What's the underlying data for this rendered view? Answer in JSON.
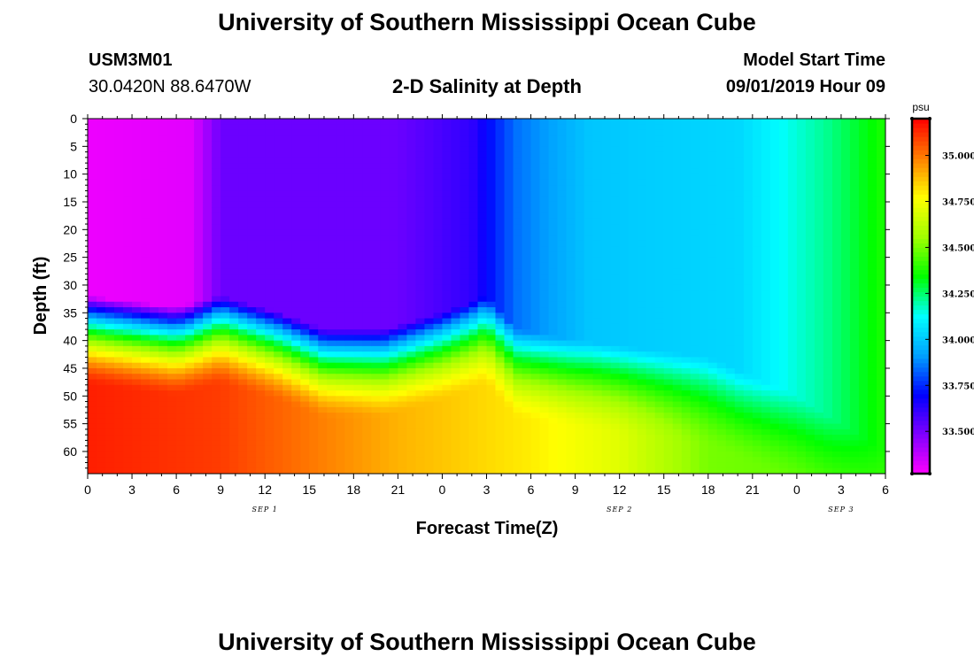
{
  "header": {
    "title": "University of Southern Mississippi Ocean Cube",
    "station_id": "USM3M01",
    "station_coords": "30.0420N 88.6470W",
    "plot_title": "2-D Salinity at Depth",
    "model_start_label": "Model Start Time",
    "model_start_value": "09/01/2019 Hour 09"
  },
  "footer": {
    "title": "University of Southern Mississippi Ocean Cube"
  },
  "chart_data": {
    "type": "heatmap",
    "title": "2-D Salinity at Depth",
    "xlabel": "Forecast Time(Z)",
    "ylabel": "Depth (ft)",
    "x_hours": [
      0,
      3,
      6,
      9,
      12,
      15,
      18,
      21,
      24,
      27,
      30,
      33,
      36,
      39,
      42,
      45,
      48,
      51,
      54
    ],
    "x_tick_labels": [
      "0",
      "3",
      "6",
      "9",
      "12",
      "15",
      "18",
      "21",
      "0",
      "3",
      "6",
      "9",
      "12",
      "15",
      "18",
      "21",
      "0",
      "3",
      "6"
    ],
    "date_labels": [
      {
        "label": "SEP 1",
        "hour": 12
      },
      {
        "label": "SEP 2",
        "hour": 36
      },
      {
        "label": "SEP 3",
        "hour": 51
      }
    ],
    "xlim": [
      0,
      54
    ],
    "y_ticks": [
      0,
      5,
      10,
      15,
      20,
      25,
      30,
      35,
      40,
      45,
      50,
      55,
      60
    ],
    "ylim": [
      0,
      64
    ],
    "y_inverted": true,
    "colorbar": {
      "unit": "psu",
      "ticks": [
        "33.500",
        "33.750",
        "34.000",
        "34.250",
        "34.500",
        "34.750",
        "35.000"
      ],
      "tick_values": [
        33.5,
        33.75,
        34.0,
        34.25,
        34.5,
        34.75,
        35.0
      ],
      "range": [
        33.27,
        35.2
      ],
      "colors": [
        "#ff00ff",
        "#8000ff",
        "#0000ff",
        "#00a0ff",
        "#00ffff",
        "#00ff00",
        "#a0ff00",
        "#ffff00",
        "#ff8000",
        "#ff0000"
      ]
    },
    "surface_salinity": [
      {
        "hour": 0,
        "psu": 33.3
      },
      {
        "hour": 7,
        "psu": 33.32
      },
      {
        "hour": 9,
        "psu": 33.52
      },
      {
        "hour": 21,
        "psu": 33.52
      },
      {
        "hour": 26,
        "psu": 33.62
      },
      {
        "hour": 29,
        "psu": 33.85
      },
      {
        "hour": 34,
        "psu": 34.0
      },
      {
        "hour": 44,
        "psu": 34.04
      },
      {
        "hour": 50,
        "psu": 34.22
      },
      {
        "hour": 54,
        "psu": 34.38
      }
    ],
    "mixed_layer_depth_ft": [
      {
        "hour": 0,
        "depth": 32
      },
      {
        "hour": 6,
        "depth": 34
      },
      {
        "hour": 9,
        "depth": 32
      },
      {
        "hour": 13,
        "depth": 35
      },
      {
        "hour": 16,
        "depth": 38
      },
      {
        "hour": 20,
        "depth": 38
      },
      {
        "hour": 24,
        "depth": 35
      },
      {
        "hour": 27,
        "depth": 32
      },
      {
        "hour": 29,
        "depth": 38
      },
      {
        "hour": 33,
        "depth": 40
      },
      {
        "hour": 42,
        "depth": 43
      },
      {
        "hour": 48,
        "depth": 50
      },
      {
        "hour": 54,
        "depth": 60
      }
    ],
    "bottom_salinity": [
      {
        "hour": 0,
        "psu": 35.15
      },
      {
        "hour": 9,
        "psu": 35.1
      },
      {
        "hour": 21,
        "psu": 34.9
      },
      {
        "hour": 30,
        "psu": 34.8
      },
      {
        "hour": 36,
        "psu": 34.7
      },
      {
        "hour": 42,
        "psu": 34.5
      },
      {
        "hour": 54,
        "psu": 34.45
      }
    ]
  }
}
